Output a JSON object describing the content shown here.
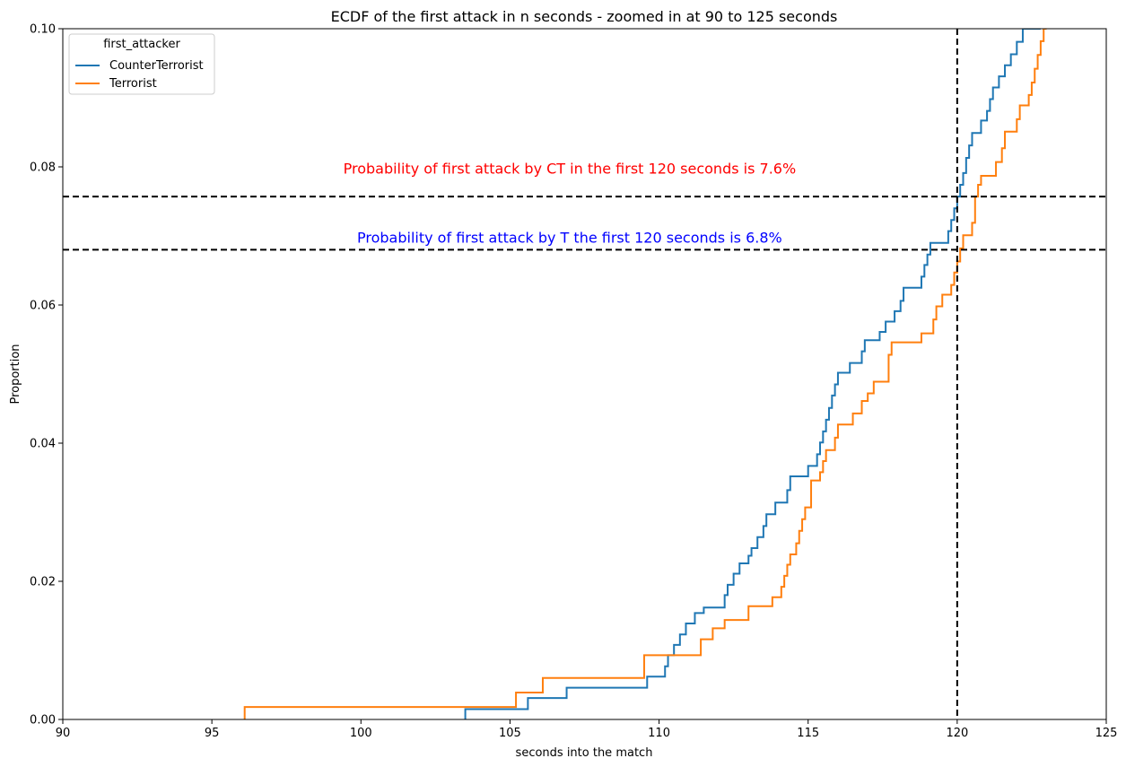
{
  "chart_data": {
    "type": "line",
    "title": "ECDF of the first attack in n seconds - zoomed in at 90 to 125 seconds",
    "xlabel": "seconds into the match",
    "ylabel": "Proportion",
    "xlim": [
      90,
      125
    ],
    "ylim": [
      0,
      0.1
    ],
    "x_ticks": [
      "90",
      "95",
      "100",
      "105",
      "110",
      "115",
      "120",
      "125"
    ],
    "y_ticks": [
      "0.00",
      "0.02",
      "0.04",
      "0.06",
      "0.08",
      "0.10"
    ],
    "grid": false,
    "legend": {
      "title": "first_attacker",
      "placement": "top-left",
      "entries": [
        "CounterTerrorist",
        "Terrorist"
      ]
    },
    "reference_lines": [
      {
        "orientation": "vertical",
        "x": 120,
        "style": "dashed",
        "color": "#000000"
      },
      {
        "orientation": "horizontal",
        "y": 0.0757,
        "style": "dashed",
        "color": "#000000"
      },
      {
        "orientation": "horizontal",
        "y": 0.068,
        "style": "dashed",
        "color": "#000000"
      }
    ],
    "annotations": [
      {
        "text": "Probability of first attack by CT in the first 120 seconds is 7.6%",
        "x": 107,
        "y": 0.079,
        "color": "#ff0000"
      },
      {
        "text": "Probability of first attack by T the first 120 seconds is 6.8%",
        "x": 107,
        "y": 0.069,
        "color": "#0000ff"
      }
    ],
    "series": [
      {
        "name": "CounterTerrorist",
        "color": "#1f77b4",
        "step": "post",
        "points": [
          [
            103.5,
            0.0
          ],
          [
            103.5,
            0.0015
          ],
          [
            105.6,
            0.0031
          ],
          [
            106.9,
            0.0046
          ],
          [
            109.6,
            0.0062
          ],
          [
            110.2,
            0.0077
          ],
          [
            110.3,
            0.0093
          ],
          [
            110.5,
            0.0108
          ],
          [
            110.7,
            0.0123
          ],
          [
            110.9,
            0.0139
          ],
          [
            111.2,
            0.0154
          ],
          [
            111.5,
            0.0162
          ],
          [
            112.2,
            0.018
          ],
          [
            112.3,
            0.0195
          ],
          [
            112.5,
            0.0211
          ],
          [
            112.7,
            0.0226
          ],
          [
            113.0,
            0.0237
          ],
          [
            113.1,
            0.0248
          ],
          [
            113.3,
            0.0264
          ],
          [
            113.5,
            0.028
          ],
          [
            113.6,
            0.0297
          ],
          [
            113.9,
            0.0314
          ],
          [
            114.3,
            0.0332
          ],
          [
            114.4,
            0.0352
          ],
          [
            115.0,
            0.0367
          ],
          [
            115.3,
            0.0384
          ],
          [
            115.4,
            0.0401
          ],
          [
            115.5,
            0.0417
          ],
          [
            115.6,
            0.0434
          ],
          [
            115.7,
            0.0451
          ],
          [
            115.8,
            0.0469
          ],
          [
            115.9,
            0.0485
          ],
          [
            116.0,
            0.0502
          ],
          [
            116.4,
            0.0516
          ],
          [
            116.8,
            0.0533
          ],
          [
            116.9,
            0.0549
          ],
          [
            117.4,
            0.0561
          ],
          [
            117.6,
            0.0576
          ],
          [
            117.9,
            0.0591
          ],
          [
            118.1,
            0.0606
          ],
          [
            118.2,
            0.0625
          ],
          [
            118.8,
            0.0641
          ],
          [
            118.9,
            0.0658
          ],
          [
            119.0,
            0.0673
          ],
          [
            119.1,
            0.069
          ],
          [
            119.7,
            0.0707
          ],
          [
            119.8,
            0.0723
          ],
          [
            119.9,
            0.074
          ],
          [
            120.0,
            0.0757
          ],
          [
            120.1,
            0.0774
          ],
          [
            120.2,
            0.0791
          ],
          [
            120.3,
            0.0813
          ],
          [
            120.4,
            0.0831
          ],
          [
            120.5,
            0.0849
          ],
          [
            120.8,
            0.0867
          ],
          [
            121.0,
            0.0881
          ],
          [
            121.1,
            0.0898
          ],
          [
            121.2,
            0.0915
          ],
          [
            121.4,
            0.0931
          ],
          [
            121.6,
            0.0947
          ],
          [
            121.8,
            0.0963
          ],
          [
            122.0,
            0.0981
          ],
          [
            122.2,
            0.1
          ],
          [
            122.8,
            0.1
          ]
        ]
      },
      {
        "name": "Terrorist",
        "color": "#ff7f0e",
        "step": "post",
        "points": [
          [
            96.1,
            0.0
          ],
          [
            96.1,
            0.0018
          ],
          [
            105.2,
            0.0039
          ],
          [
            106.1,
            0.006
          ],
          [
            109.5,
            0.0093
          ],
          [
            111.4,
            0.0116
          ],
          [
            111.8,
            0.0132
          ],
          [
            112.2,
            0.0144
          ],
          [
            113.0,
            0.0164
          ],
          [
            113.8,
            0.0177
          ],
          [
            114.1,
            0.0192
          ],
          [
            114.2,
            0.0208
          ],
          [
            114.3,
            0.0224
          ],
          [
            114.4,
            0.0239
          ],
          [
            114.6,
            0.0255
          ],
          [
            114.7,
            0.0273
          ],
          [
            114.8,
            0.029
          ],
          [
            114.9,
            0.0307
          ],
          [
            115.1,
            0.0346
          ],
          [
            115.4,
            0.0358
          ],
          [
            115.5,
            0.0374
          ],
          [
            115.6,
            0.039
          ],
          [
            115.9,
            0.0408
          ],
          [
            116.0,
            0.0427
          ],
          [
            116.5,
            0.0443
          ],
          [
            116.8,
            0.0461
          ],
          [
            117.0,
            0.0472
          ],
          [
            117.2,
            0.0489
          ],
          [
            117.7,
            0.0528
          ],
          [
            117.8,
            0.0546
          ],
          [
            118.8,
            0.0559
          ],
          [
            119.2,
            0.0579
          ],
          [
            119.3,
            0.0598
          ],
          [
            119.5,
            0.0615
          ],
          [
            119.8,
            0.0629
          ],
          [
            119.9,
            0.0647
          ],
          [
            120.0,
            0.0663
          ],
          [
            120.1,
            0.0682
          ],
          [
            120.2,
            0.0701
          ],
          [
            120.5,
            0.0719
          ],
          [
            120.6,
            0.0757
          ],
          [
            120.7,
            0.0774
          ],
          [
            120.8,
            0.0787
          ],
          [
            121.3,
            0.0807
          ],
          [
            121.5,
            0.0827
          ],
          [
            121.6,
            0.0851
          ],
          [
            122.0,
            0.0869
          ],
          [
            122.1,
            0.0889
          ],
          [
            122.4,
            0.0904
          ],
          [
            122.5,
            0.0922
          ],
          [
            122.6,
            0.0942
          ],
          [
            122.7,
            0.0962
          ],
          [
            122.8,
            0.0982
          ],
          [
            122.9,
            0.1
          ],
          [
            123.0,
            0.1
          ]
        ]
      }
    ]
  }
}
